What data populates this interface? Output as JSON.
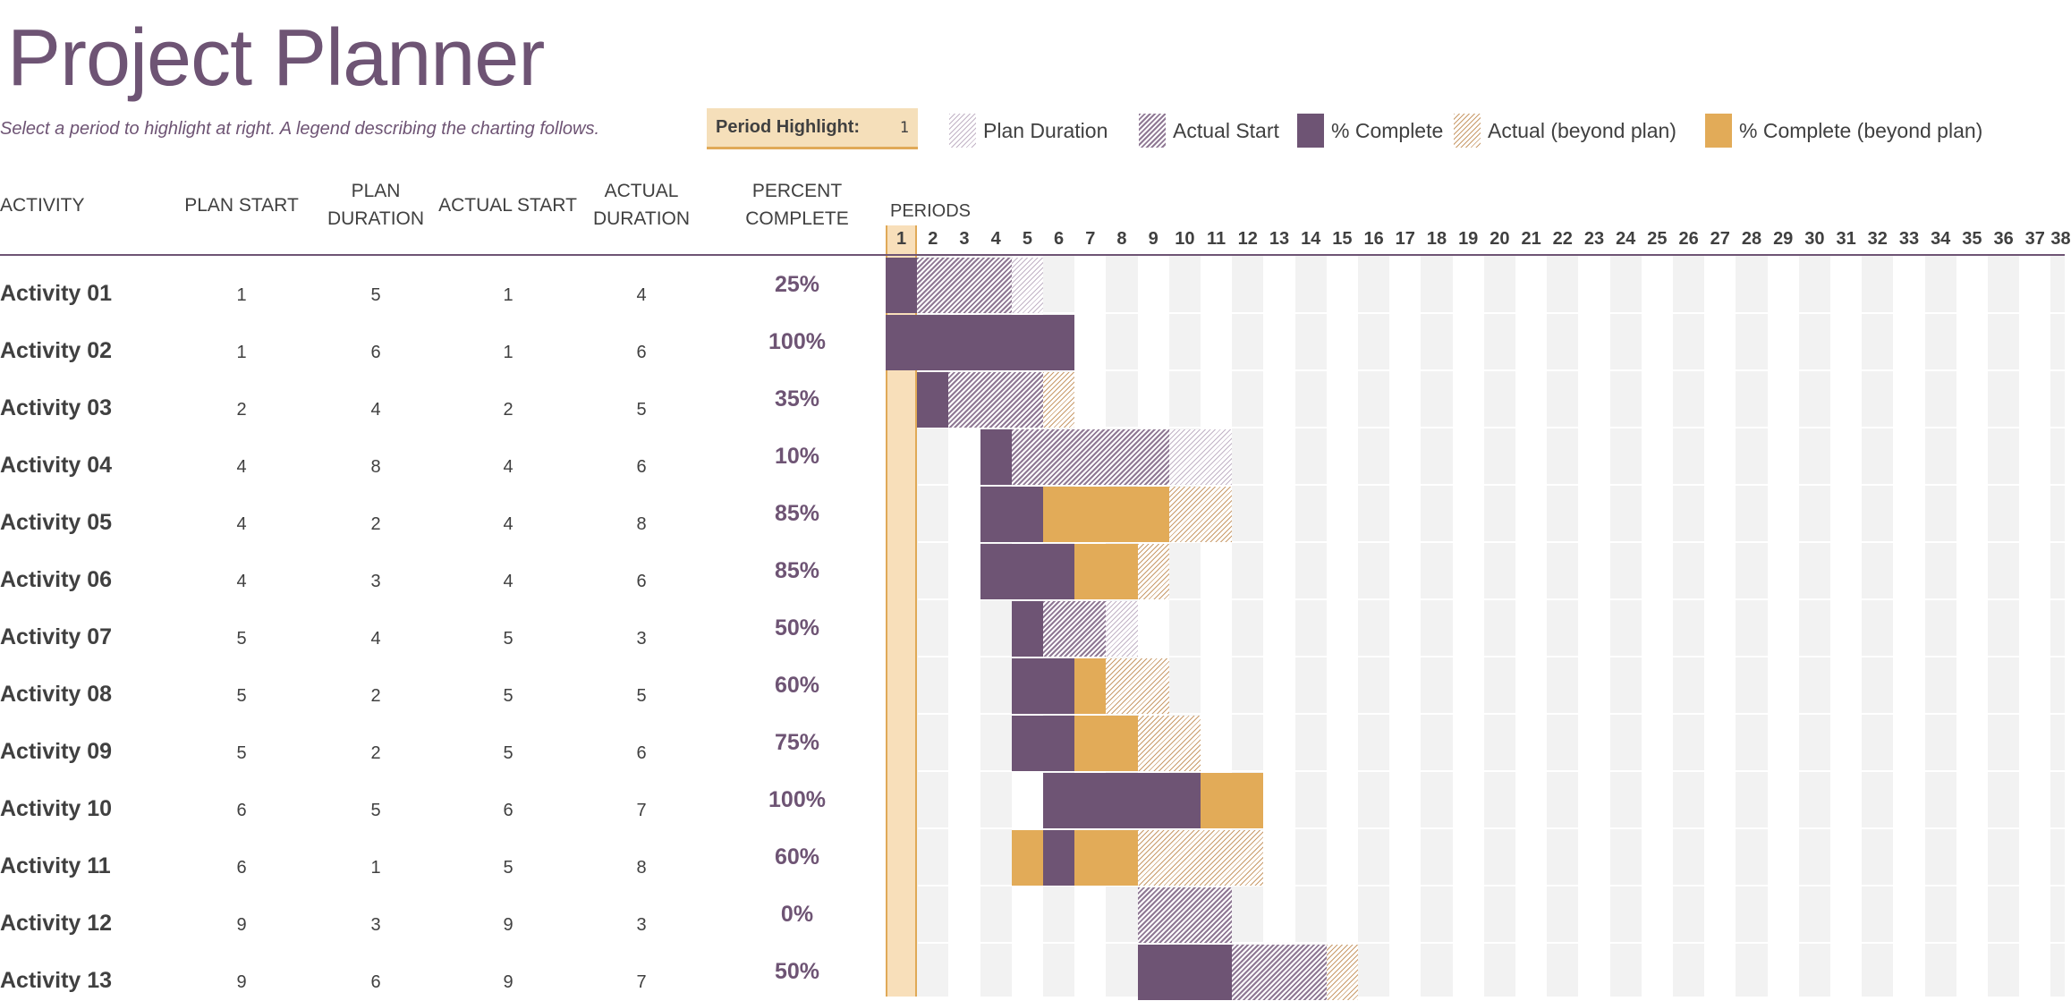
{
  "title": "Project Planner",
  "instructions": "Select a period to highlight at right.  A legend describing the charting follows.",
  "period_highlight": {
    "label": "Period Highlight:",
    "value": "1"
  },
  "legend": [
    {
      "key": "plan",
      "label": "Plan Duration",
      "icon": "plan-duration-icon"
    },
    {
      "key": "actual",
      "label": "Actual Start",
      "icon": "actual-start-icon"
    },
    {
      "key": "complete",
      "label": "% Complete",
      "icon": "percent-complete-icon"
    },
    {
      "key": "beyond",
      "label": "Actual (beyond plan)",
      "icon": "actual-beyond-plan-icon"
    },
    {
      "key": "complete_beyond",
      "label": "% Complete (beyond plan)",
      "icon": "percent-complete-beyond-icon"
    }
  ],
  "colors": {
    "purple": "#6e5474",
    "gold": "#e2ab58",
    "highlight": "#f8dfba",
    "stripe": "#f2f2f2"
  },
  "headers": {
    "activity": "ACTIVITY",
    "plan_start": "PLAN START",
    "plan_duration_1": "PLAN",
    "plan_duration_2": "DURATION",
    "actual_start": "ACTUAL START",
    "actual_duration_1": "ACTUAL",
    "actual_duration_2": "DURATION",
    "percent_1": "PERCENT",
    "percent_2": "COMPLETE",
    "periods": "PERIODS"
  },
  "periods": [
    "1",
    "2",
    "3",
    "4",
    "5",
    "6",
    "7",
    "8",
    "9",
    "10",
    "11",
    "12",
    "13",
    "14",
    "15",
    "16",
    "17",
    "18",
    "19",
    "20",
    "21",
    "22",
    "23",
    "24",
    "25",
    "26",
    "27",
    "28",
    "29",
    "30",
    "31",
    "32",
    "33",
    "34",
    "35",
    "36",
    "37",
    "38"
  ],
  "activities": [
    {
      "name": "Activity 01",
      "plan_start": 1,
      "plan_duration": 5,
      "actual_start": 1,
      "actual_duration": 4,
      "percent": "25%",
      "percent_value": 25
    },
    {
      "name": "Activity 02",
      "plan_start": 1,
      "plan_duration": 6,
      "actual_start": 1,
      "actual_duration": 6,
      "percent": "100%",
      "percent_value": 100
    },
    {
      "name": "Activity 03",
      "plan_start": 2,
      "plan_duration": 4,
      "actual_start": 2,
      "actual_duration": 5,
      "percent": "35%",
      "percent_value": 35
    },
    {
      "name": "Activity 04",
      "plan_start": 4,
      "plan_duration": 8,
      "actual_start": 4,
      "actual_duration": 6,
      "percent": "10%",
      "percent_value": 10
    },
    {
      "name": "Activity 05",
      "plan_start": 4,
      "plan_duration": 2,
      "actual_start": 4,
      "actual_duration": 8,
      "percent": "85%",
      "percent_value": 85
    },
    {
      "name": "Activity 06",
      "plan_start": 4,
      "plan_duration": 3,
      "actual_start": 4,
      "actual_duration": 6,
      "percent": "85%",
      "percent_value": 85
    },
    {
      "name": "Activity 07",
      "plan_start": 5,
      "plan_duration": 4,
      "actual_start": 5,
      "actual_duration": 3,
      "percent": "50%",
      "percent_value": 50
    },
    {
      "name": "Activity 08",
      "plan_start": 5,
      "plan_duration": 2,
      "actual_start": 5,
      "actual_duration": 5,
      "percent": "60%",
      "percent_value": 60
    },
    {
      "name": "Activity 09",
      "plan_start": 5,
      "plan_duration": 2,
      "actual_start": 5,
      "actual_duration": 6,
      "percent": "75%",
      "percent_value": 75
    },
    {
      "name": "Activity 10",
      "plan_start": 6,
      "plan_duration": 5,
      "actual_start": 6,
      "actual_duration": 7,
      "percent": "100%",
      "percent_value": 100
    },
    {
      "name": "Activity 11",
      "plan_start": 6,
      "plan_duration": 1,
      "actual_start": 5,
      "actual_duration": 8,
      "percent": "60%",
      "percent_value": 60
    },
    {
      "name": "Activity 12",
      "plan_start": 9,
      "plan_duration": 3,
      "actual_start": 9,
      "actual_duration": 3,
      "percent": "0%",
      "percent_value": 0
    },
    {
      "name": "Activity 13",
      "plan_start": 9,
      "plan_duration": 6,
      "actual_start": 9,
      "actual_duration": 7,
      "percent": "50%",
      "percent_value": 50
    }
  ],
  "gantt": [
    [
      {
        "kind": "complete",
        "from": 1,
        "span": 1
      },
      {
        "kind": "actual",
        "from": 2,
        "span": 3
      },
      {
        "kind": "plan",
        "from": 5,
        "span": 1
      }
    ],
    [
      {
        "kind": "complete",
        "from": 1,
        "span": 6
      }
    ],
    [
      {
        "kind": "complete",
        "from": 2,
        "span": 1
      },
      {
        "kind": "actual",
        "from": 3,
        "span": 3
      },
      {
        "kind": "beyond",
        "from": 6,
        "span": 1
      }
    ],
    [
      {
        "kind": "complete",
        "from": 4,
        "span": 1
      },
      {
        "kind": "actual",
        "from": 5,
        "span": 5
      },
      {
        "kind": "plan",
        "from": 10,
        "span": 2
      }
    ],
    [
      {
        "kind": "complete",
        "from": 4,
        "span": 2
      },
      {
        "kind": "complete_beyond",
        "from": 6,
        "span": 4
      },
      {
        "kind": "beyond",
        "from": 10,
        "span": 2
      }
    ],
    [
      {
        "kind": "complete",
        "from": 4,
        "span": 3
      },
      {
        "kind": "complete_beyond",
        "from": 7,
        "span": 2
      },
      {
        "kind": "beyond",
        "from": 9,
        "span": 1
      }
    ],
    [
      {
        "kind": "complete",
        "from": 5,
        "span": 1
      },
      {
        "kind": "actual",
        "from": 6,
        "span": 2
      },
      {
        "kind": "plan",
        "from": 8,
        "span": 1
      }
    ],
    [
      {
        "kind": "complete",
        "from": 5,
        "span": 2
      },
      {
        "kind": "complete_beyond",
        "from": 7,
        "span": 1
      },
      {
        "kind": "beyond",
        "from": 8,
        "span": 2
      }
    ],
    [
      {
        "kind": "complete",
        "from": 5,
        "span": 2
      },
      {
        "kind": "complete_beyond",
        "from": 7,
        "span": 2
      },
      {
        "kind": "beyond",
        "from": 9,
        "span": 2
      }
    ],
    [
      {
        "kind": "complete",
        "from": 6,
        "span": 5
      },
      {
        "kind": "complete_beyond",
        "from": 11,
        "span": 2
      }
    ],
    [
      {
        "kind": "complete_beyond",
        "from": 5,
        "span": 1
      },
      {
        "kind": "complete",
        "from": 6,
        "span": 1
      },
      {
        "kind": "complete_beyond",
        "from": 7,
        "span": 2
      },
      {
        "kind": "beyond",
        "from": 9,
        "span": 4
      }
    ],
    [
      {
        "kind": "actual",
        "from": 9,
        "span": 3
      }
    ],
    [
      {
        "kind": "complete",
        "from": 9,
        "span": 3
      },
      {
        "kind": "actual",
        "from": 12,
        "span": 3
      },
      {
        "kind": "beyond",
        "from": 15,
        "span": 1
      }
    ]
  ]
}
